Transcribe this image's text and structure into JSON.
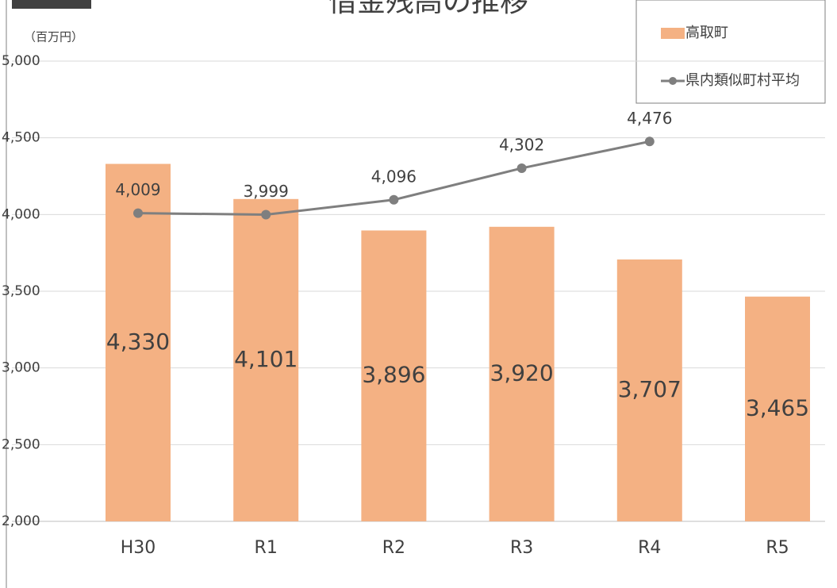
{
  "chart_data": {
    "type": "bar",
    "title": "借金残高の推移",
    "y_axis_label": "（百万円）",
    "categories": [
      "H30",
      "R1",
      "R2",
      "R3",
      "R4",
      "R5"
    ],
    "series": [
      {
        "name": "高取町",
        "type": "bar",
        "color": "#f4b183",
        "values": [
          4330,
          4101,
          3896,
          3920,
          3707,
          3465
        ],
        "value_labels": [
          "4,330",
          "4,101",
          "3,896",
          "3,920",
          "3,707",
          "3,465"
        ]
      },
      {
        "name": "県内類似町村平均",
        "type": "line",
        "color": "#7f7f7f",
        "values": [
          4009,
          3999,
          4096,
          4302,
          4476,
          null
        ],
        "value_labels": [
          "4,009",
          "3,999",
          "4,096",
          "4,302",
          "4,476",
          null
        ]
      }
    ],
    "ylim": [
      2000,
      5000
    ],
    "yticks": [
      {
        "value": 2000,
        "label": "2,000"
      },
      {
        "value": 2500,
        "label": "2,500"
      },
      {
        "value": 3000,
        "label": "3,000"
      },
      {
        "value": 3500,
        "label": "3,500"
      },
      {
        "value": 4000,
        "label": "4,000"
      },
      {
        "value": 4500,
        "label": "4,500"
      },
      {
        "value": 5000,
        "label": "5,000"
      }
    ],
    "grid": true,
    "legend": "top-right"
  }
}
